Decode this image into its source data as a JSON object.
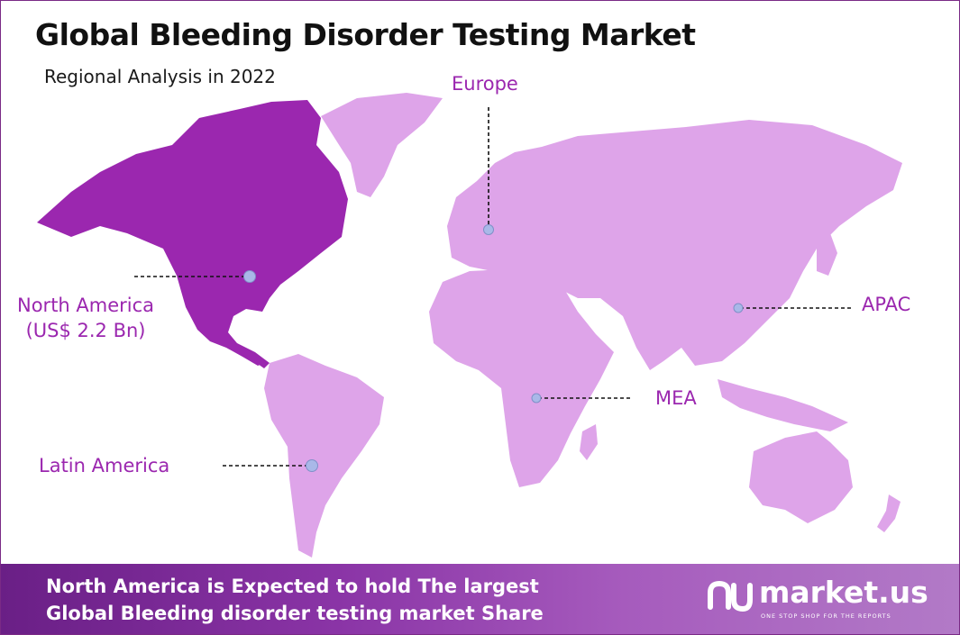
{
  "header": {
    "title": "Global Bleeding Disorder Testing Market",
    "subtitle": "Regional Analysis in 2022"
  },
  "regions": {
    "north_america": {
      "name": "North America",
      "value": "(US$ 2.2 Bn)",
      "color": "#9b27af"
    },
    "europe": {
      "name": "Europe"
    },
    "apac": {
      "name": "APAC"
    },
    "mea": {
      "name": "MEA"
    },
    "latin_america": {
      "name": "Latin America"
    }
  },
  "map_colors": {
    "highlight": "#9b27af",
    "land": "#dea4e9",
    "marker": "#a9b8e8",
    "label": "#9b27af"
  },
  "footer": {
    "line1": "North America is Expected to hold The largest",
    "line2": "Global Bleeding disorder testing market Share",
    "brand_name": "market.us",
    "brand_tagline": "ONE STOP SHOP FOR THE REPORTS"
  }
}
